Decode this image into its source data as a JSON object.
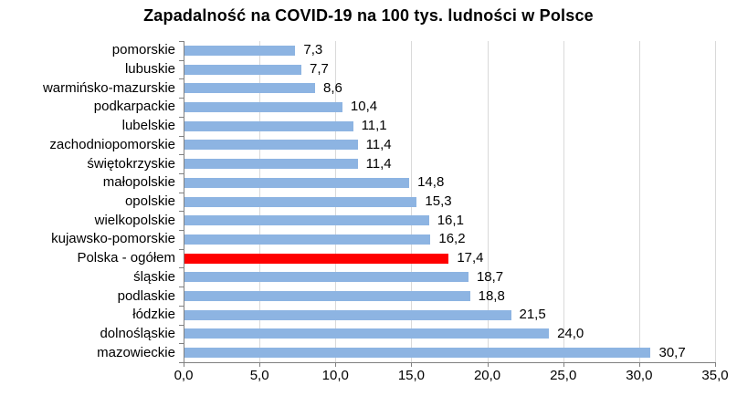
{
  "chart_data": {
    "type": "bar",
    "orientation": "horizontal",
    "title": "Zapadalność na COVID-19 na 100 tys. ludności w Polsce",
    "categories": [
      "pomorskie",
      "lubuskie",
      "warmińsko-mazurskie",
      "podkarpackie",
      "lubelskie",
      "zachodniopomorskie",
      "świętokrzyskie",
      "małopolskie",
      "opolskie",
      "wielkopolskie",
      "kujawsko-pomorskie",
      "Polska - ogółem",
      "śląskie",
      "podlaskie",
      "łódzkie",
      "dolnośląskie",
      "mazowieckie"
    ],
    "values": [
      7.3,
      7.7,
      8.6,
      10.4,
      11.1,
      11.4,
      11.4,
      14.8,
      15.3,
      16.1,
      16.2,
      17.4,
      18.7,
      18.8,
      21.5,
      24.0,
      30.7
    ],
    "value_labels": [
      "7,3",
      "7,7",
      "8,6",
      "10,4",
      "11,1",
      "11,4",
      "11,4",
      "14,8",
      "15,3",
      "16,1",
      "16,2",
      "17,4",
      "18,7",
      "18,8",
      "21,5",
      "24,0",
      "30,7"
    ],
    "highlight_category": "Polska - ogółem",
    "highlight_index": 11,
    "xlim": [
      0,
      35
    ],
    "x_ticks": [
      0,
      5,
      10,
      15,
      20,
      25,
      30,
      35
    ],
    "x_tick_labels": [
      "0,0",
      "5,0",
      "10,0",
      "15,0",
      "20,0",
      "25,0",
      "30,0",
      "35,0"
    ],
    "grid": "vertical-only",
    "legend": "none",
    "colors": {
      "bar": "#8DB4E2",
      "highlight_bar": "#FF0000",
      "gridline": "#D9D9D9",
      "axis": "#808080",
      "text": "#000000",
      "background": "#FFFFFF"
    }
  }
}
